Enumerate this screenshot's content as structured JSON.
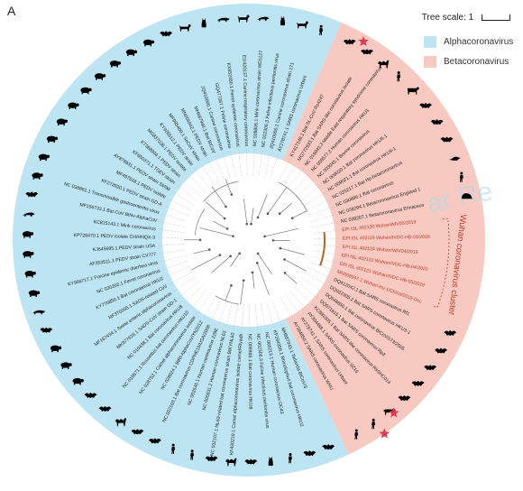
{
  "panel_letter": "A",
  "tree_scale": {
    "label": "Tree scale: 1"
  },
  "legend": [
    {
      "label": "Alphacoronavirus",
      "color": "#bde4f2"
    },
    {
      "label": "Betacoronavirus",
      "color": "#f7c9c0"
    }
  ],
  "colors": {
    "alpha_bg": "#bde4f2",
    "beta_bg": "#f7c9c0",
    "wuhan_text": "#c0392b",
    "wuhan_branch": "#b5651d",
    "star": "#e0394f",
    "branch": "#777777"
  },
  "cluster_label": "Wuhan coronavirus cluster",
  "watermark": "ar Re",
  "alpha_leaves": [
    {
      "label": "MH687945.1 Tadarida BtCoV/3",
      "icon": "bat-icon"
    },
    {
      "label": "KF294356.1 Rhinolophus bat coronavirus HKU2",
      "icon": "bat-icon"
    },
    {
      "label": "NC 006213.1 Human coronavirus OC43",
      "icon": "human-icon"
    },
    {
      "label": "NC 002306.3 Feline infectious peritonitis virus",
      "icon": "cat-icon"
    },
    {
      "label": "NC 009988.1 Bat coronavirus HKU8",
      "icon": "bat-icon"
    },
    {
      "label": "KF430219.1 Camel alphacoronavirus isolate camel/Riyadh",
      "icon": "camel-icon"
    },
    {
      "label": "NC 032107.1 NL63-related bat coronavirus strain BtKYNL63",
      "icon": "bat-icon"
    },
    {
      "label": "NC 005831.2 Human coronavirus NL63",
      "icon": "human-icon"
    },
    {
      "label": "NC 002645.1 Human coronavirus 229E",
      "icon": "human-icon"
    },
    {
      "label": "NC 022103.1 Bat coronavirus CDPHE15/USA/2006",
      "icon": "bat-icon"
    },
    {
      "label": "NC 028824.1 BtRf-AlphaCoV/YN2012",
      "icon": "bat-icon"
    },
    {
      "label": "NC 028752.1 Camel alphacoronavirus isolate",
      "icon": "camel-icon"
    },
    {
      "label": "NC 018871.1 Rousettus bat coronavirus HKU10",
      "icon": "bat-icon"
    },
    {
      "label": "NC 010438.1 Bat coronavirus HKU8",
      "icon": "bat-icon"
    },
    {
      "label": "MK977618.1 SADS-CoV strain GD-1",
      "icon": "pig-icon"
    },
    {
      "label": "MF167434.1 Swine enteric alphacoronavirus",
      "icon": "pig-icon"
    },
    {
      "label": "MF370205.1 SADS-related CoV",
      "icon": "pig-icon"
    },
    {
      "label": "KY770850.1 Bat coronavirus HKU2",
      "icon": "bat-icon"
    },
    {
      "label": "NC 030292.1 Ferret coronavirus",
      "icon": "ferret-icon"
    },
    {
      "label": "KY966717.1 Porcine epidemic diarrhea virus",
      "icon": "pig-icon"
    },
    {
      "label": "AF353511.1 PEDV strain CV777",
      "icon": "pig-icon"
    },
    {
      "label": "KJ645695.1 PEDV strain USA",
      "icon": "pig-icon"
    },
    {
      "label": "KP728470.1 PEDV isolate CH/HNQX-3",
      "icon": "pig-icon"
    },
    {
      "label": "KC815143.1 Mink coronavirus",
      "icon": "mink-icon"
    },
    {
      "label": "MF156733.1 Bat CoV BtNv-AlphaCoV",
      "icon": "bat-icon"
    },
    {
      "label": "NC 038861.1 Transmissible gastroenteritis virus",
      "icon": "pig-icon"
    },
    {
      "label": "KF272920.1 PEDV strain GD-A",
      "icon": "pig-icon"
    },
    {
      "label": "MF497816.1 PEDV isolate",
      "icon": "pig-icon"
    },
    {
      "label": "AY876831.1 PEDV strain SM98",
      "icon": "pig-icon"
    },
    {
      "label": "KF650371.1 TGEV strain",
      "icon": "pig-icon"
    },
    {
      "label": "KT368904.1 PEDV strain",
      "icon": "pig-icon"
    },
    {
      "label": "MG837028.1 PEDV isolate",
      "icon": "pig-icon"
    },
    {
      "label": "KY926512.1 PEDV strain",
      "icon": "pig-icon"
    },
    {
      "label": "MF995400.1 SeCoV strain",
      "icon": "pig-icon"
    },
    {
      "label": "MN056942.1 PEDV strain",
      "icon": "pig-icon"
    },
    {
      "label": "MH687946.1 Bat BtCoV",
      "icon": "bat-icon"
    },
    {
      "label": "JQ410000.1 Canine coronavirus",
      "icon": "dog-icon"
    },
    {
      "label": "GQ477367.1 Feline coronavirus",
      "icon": "cat-icon"
    },
    {
      "label": "KX652450.1 Ferret systemic coronavirus",
      "icon": "ferret-icon"
    },
    {
      "label": "EU420137.1 Canine respiratory coronavirus",
      "icon": "dog-icon"
    },
    {
      "label": "NC 028806.1 Mink coronavirus strain WD1127",
      "icon": "mink-icon"
    },
    {
      "label": "NC 002306.3 Feline infectious peritonitis virus",
      "icon": "cat-icon"
    },
    {
      "label": "JQ410000.1 Canine coronavirus strain 171",
      "icon": "dog-icon"
    },
    {
      "label": "AY278741.1 SARS coronavirus Urbani",
      "icon": "human-icon"
    }
  ],
  "beta_leaves": [
    {
      "label": "KY417148.1 Bat SL-CoV Rs4247",
      "icon": "bat-icon",
      "highlight": false
    },
    {
      "label": "MG772933.1 Bat SARS-like coronavirus isolate",
      "icon": "bat-icon",
      "highlight": false
    },
    {
      "label": "NC 019843.3 Middle East respiratory syndrome coronavirus",
      "icon": "camel-icon",
      "highlight": false
    },
    {
      "label": "NC 006577.2 Human coronavirus HKU1",
      "icon": "human-icon",
      "highlight": false
    },
    {
      "label": "NC 003045.1 Bovine coronavirus",
      "icon": "cow-icon",
      "highlight": false
    },
    {
      "label": "NC 009020.1 Bat coronavirus HKU5-1",
      "icon": "bat-icon",
      "highlight": false
    },
    {
      "label": "NC 009021.1 Bat coronavirus HKU9-1",
      "icon": "bat-icon",
      "highlight": false
    },
    {
      "label": "NC 025217.1 Bat Hp-betacoronavirus",
      "icon": "bat-icon",
      "highlight": false
    },
    {
      "label": "NC 030886.1 Rat coronavirus",
      "icon": "rat-icon",
      "highlight": false
    },
    {
      "label": "NC 038294.1 Betacoronavirus England 1",
      "icon": "human-icon",
      "highlight": false
    },
    {
      "label": "NC 039207.1 Betacoronavirus Erinaceus",
      "icon": "hedgehog-icon",
      "highlight": false
    },
    {
      "label": "EPI ISL 402130 WuhanWIV05/2019",
      "icon": "",
      "highlight": true
    },
    {
      "label": "EPI ISL 402119 Wuhan/IVDC-HB-01/2019",
      "icon": "",
      "highlight": true
    },
    {
      "label": "EPI ISL 402124 Wuhan/WIV04/2019",
      "icon": "",
      "highlight": true
    },
    {
      "label": "EPI ISL 402120 Wuhan/IVDC-HB-04/2020",
      "icon": "",
      "highlight": true
    },
    {
      "label": "EPI ISL 402121 Wuhan/IVDC-HB-05/2019",
      "icon": "",
      "highlight": true
    },
    {
      "label": "MN908947.1 Wuhan-Hu-1/China/2019-Dec",
      "icon": "",
      "highlight": true
    },
    {
      "label": "DQ412042.1 Bat SARS coronavirus Rf1",
      "icon": "bat-icon",
      "highlight": false
    },
    {
      "label": "DQ022305.2 Bat SARS coronavirus HKU3-1",
      "icon": "bat-icon",
      "highlight": false
    },
    {
      "label": "DQ648856.1 Bat coronavirus BtCoV/273/2005",
      "icon": "bat-icon",
      "highlight": false
    },
    {
      "label": "DQ071615.1 Bat SARS coronavirus Rp3",
      "icon": "bat-icon",
      "highlight": false
    },
    {
      "label": "KC881005.1 Bat SARS-like coronavirus RsSHC014",
      "icon": "bat-icon",
      "highlight": false
    },
    {
      "label": "AY304488.1 SARS coronavirus SZ16",
      "icon": "civet-icon",
      "highlight": false
    },
    {
      "label": "AY278741.1 SARS coronavirus Urbani",
      "icon": "human-icon",
      "highlight": false
    },
    {
      "label": "AY394850.2 SARS coronavirus WHU",
      "icon": "human-icon",
      "highlight": false
    }
  ]
}
